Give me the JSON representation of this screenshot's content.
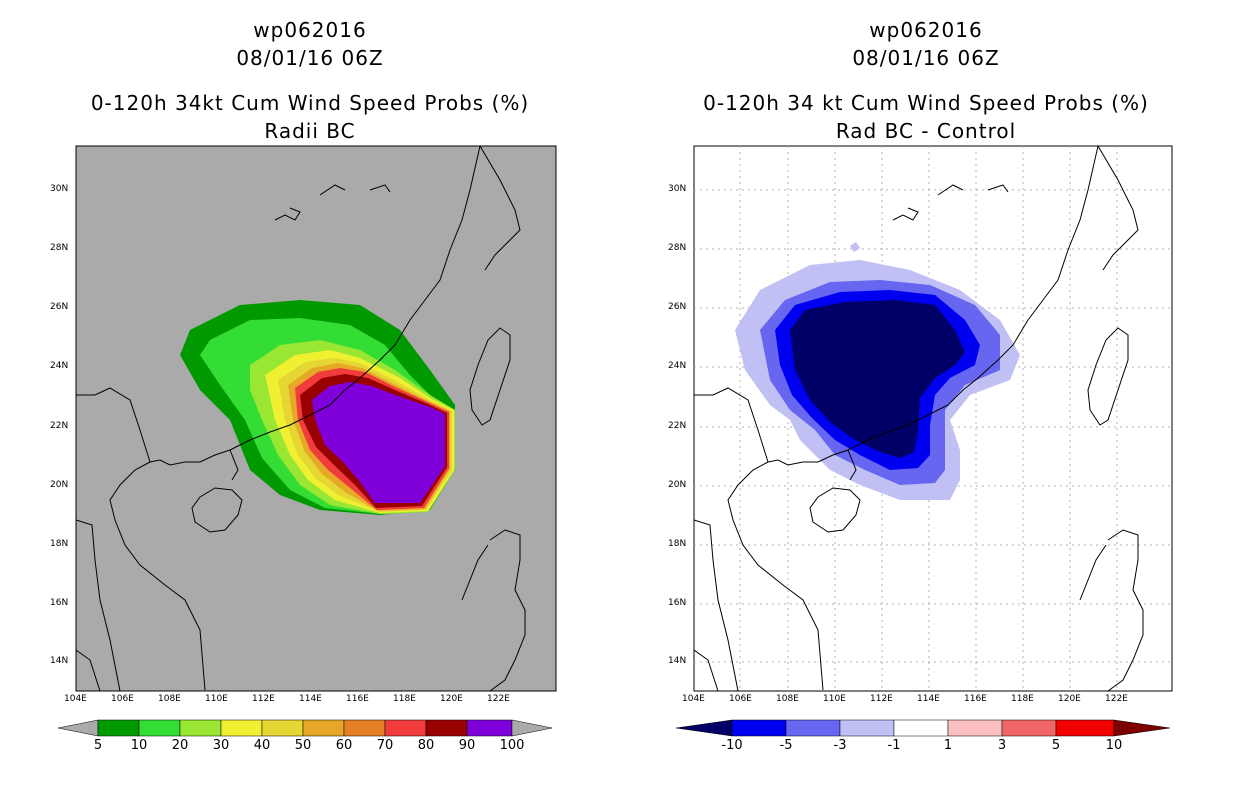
{
  "left_panel": {
    "title_line1": "wp062016",
    "title_line2": "08/01/16 06Z",
    "title_line3": "0-120h 34kt Cum Wind Speed Probs (%)",
    "title_line4": "Radii BC",
    "colorbar_labels": [
      "5",
      "10",
      "20",
      "30",
      "40",
      "50",
      "60",
      "70",
      "80",
      "90",
      "100"
    ],
    "colorbar_colors": [
      "#009900",
      "#33dd33",
      "#99e633",
      "#f0f033",
      "#e6d633",
      "#e6a826",
      "#e68026",
      "#f03c3c",
      "#990000",
      "#8000d9"
    ]
  },
  "right_panel": {
    "title_line1": "wp062016",
    "title_line2": "08/01/16 06Z",
    "title_line3": "0-120h 34 kt Cum Wind Speed Probs (%)",
    "title_line4": "Rad BC - Control",
    "colorbar_labels": [
      "-10",
      "-5",
      "-3",
      "-1",
      "1",
      "3",
      "5",
      "10"
    ],
    "colorbar_colors": [
      "#000066",
      "#0000f0",
      "#6666f0",
      "#c0c0f5",
      "#ffffff",
      "#fac0c0",
      "#f06666",
      "#f00000"
    ]
  },
  "axes": {
    "x_ticks": [
      "104E",
      "106E",
      "108E",
      "110E",
      "112E",
      "114E",
      "116E",
      "118E",
      "120E",
      "122E"
    ],
    "y_ticks": [
      "30N",
      "28N",
      "26N",
      "24N",
      "22N",
      "20N",
      "18N",
      "16N",
      "14N"
    ]
  }
}
